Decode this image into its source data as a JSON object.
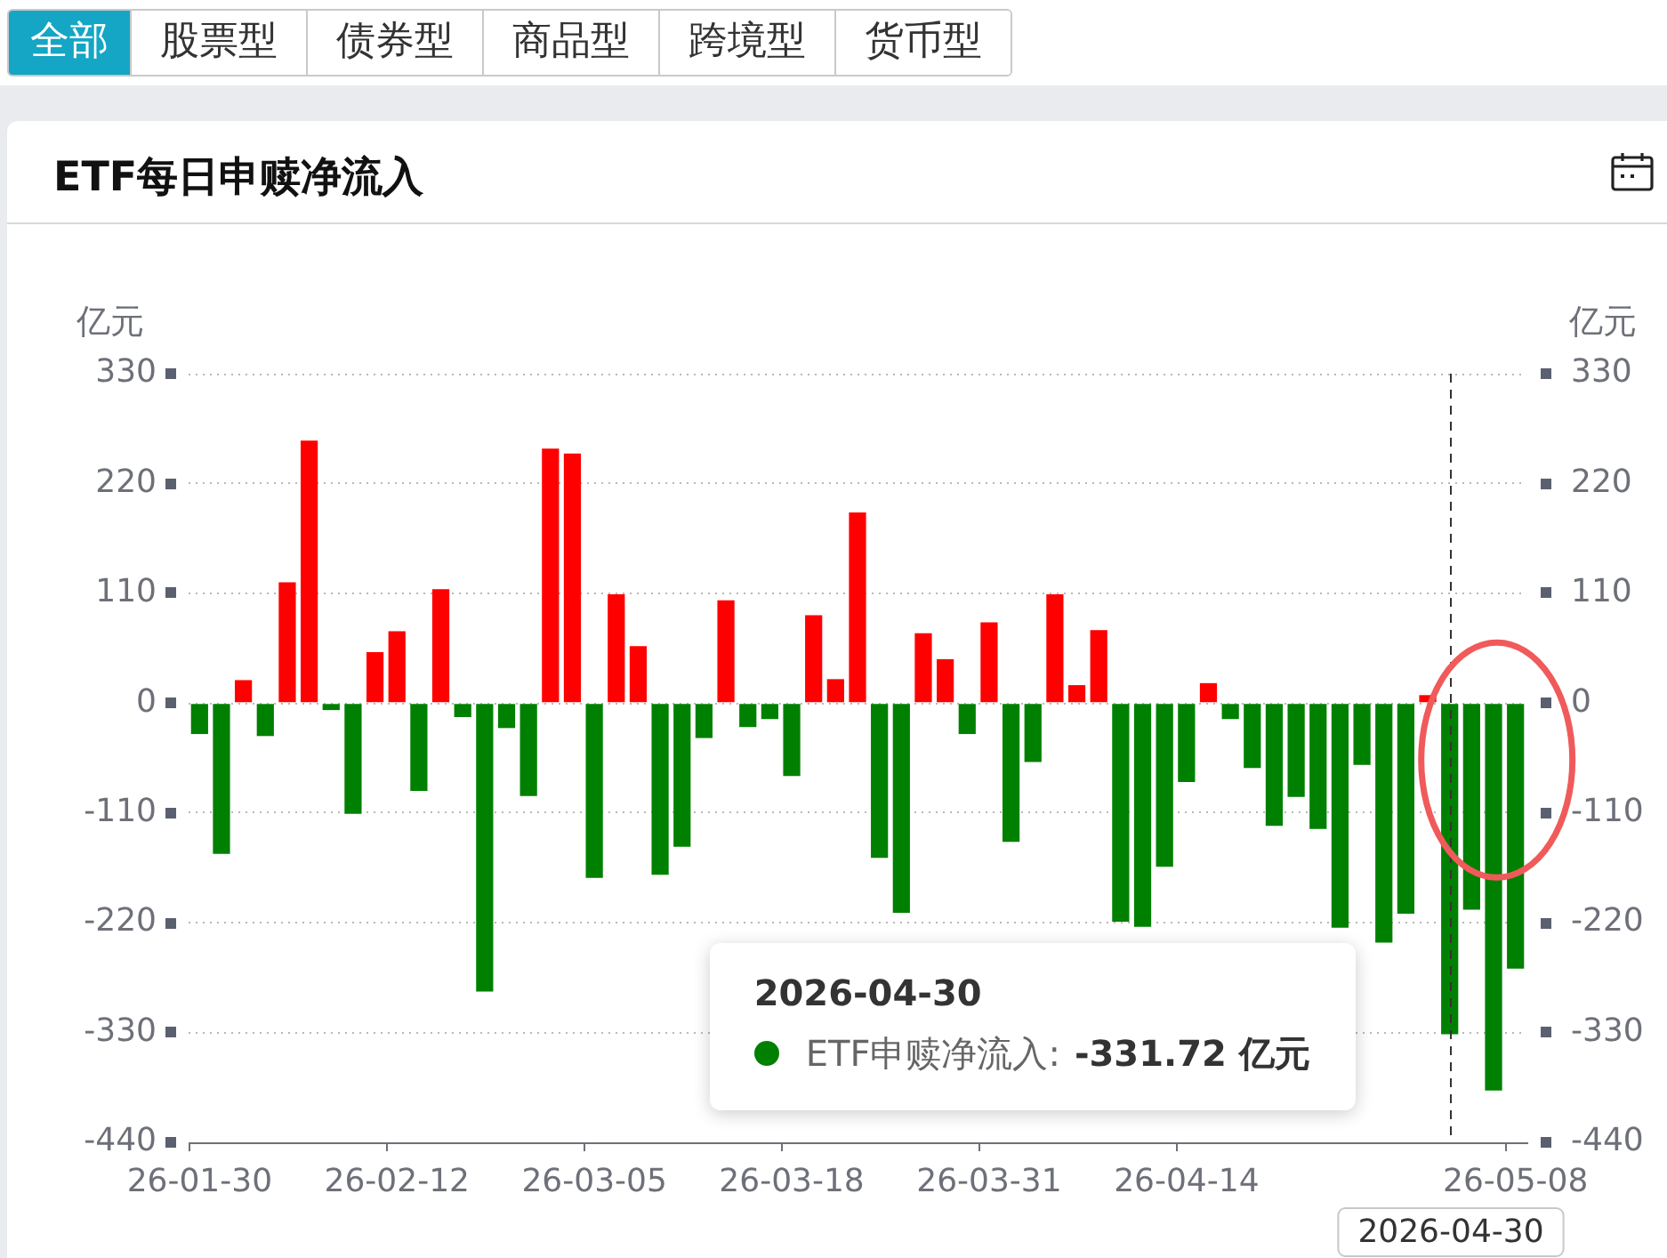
{
  "chart_data": {
    "type": "bar",
    "title": "ETF每日申赎净流入",
    "ylabel": "亿元",
    "y2label": "亿元",
    "categories": [
      "26-01-30",
      null,
      null,
      null,
      null,
      null,
      null,
      null,
      null,
      "26-02-12",
      null,
      null,
      null,
      null,
      null,
      null,
      null,
      null,
      "26-03-05",
      null,
      null,
      null,
      null,
      null,
      null,
      null,
      null,
      "26-03-18",
      null,
      null,
      null,
      null,
      null,
      null,
      null,
      null,
      "26-03-31",
      null,
      null,
      null,
      null,
      null,
      null,
      null,
      null,
      "26-04-14",
      null,
      null,
      null,
      null,
      null,
      null,
      null,
      null,
      null,
      null,
      null,
      "2026-04-30",
      null,
      null,
      "26-05-08"
    ],
    "values": [
      -31,
      -151,
      23,
      -33,
      121,
      263,
      -7,
      -111,
      51,
      72,
      -88,
      114,
      -14,
      -289,
      -25,
      -93,
      255,
      250,
      -175,
      109,
      57,
      -172,
      -144,
      -35,
      103,
      -24,
      -16,
      -73,
      88,
      24,
      191,
      -155,
      -210,
      70,
      44,
      -31,
      81,
      -139,
      -59,
      109,
      18,
      73,
      -219,
      -224,
      -164,
      -79,
      20,
      -16,
      -65,
      -123,
      -94,
      -126,
      -225,
      -62,
      -240,
      -211,
      8,
      -331.72,
      -207,
      -388,
      -266
    ],
    "colors": [
      "#008000",
      "#008000",
      "#ff0000",
      "#008000",
      "#ff0000",
      "#ff0000",
      "#008000",
      "#008000",
      "#ff0000",
      "#ff0000",
      "#008000",
      "#ff0000",
      "#008000",
      "#008000",
      "#008000",
      "#008000",
      "#ff0000",
      "#ff0000",
      "#008000",
      "#ff0000",
      "#ff0000",
      "#008000",
      "#008000",
      "#008000",
      "#ff0000",
      "#008000",
      "#008000",
      "#008000",
      "#ff0000",
      "#ff0000",
      "#ff0000",
      "#008000",
      "#008000",
      "#ff0000",
      "#ff0000",
      "#008000",
      "#ff0000",
      "#008000",
      "#008000",
      "#ff0000",
      "#ff0000",
      "#ff0000",
      "#008000",
      "#008000",
      "#008000",
      "#008000",
      "#ff0000",
      "#008000",
      "#008000",
      "#008000",
      "#008000",
      "#008000",
      "#008000",
      "#008000",
      "#008000",
      "#008000",
      "#ff0000",
      "#008000",
      "#008000",
      "#008000",
      "#008000"
    ],
    "ylim": [
      -440,
      330
    ],
    "yticks": [
      -440,
      -330,
      -220,
      -110,
      0,
      110,
      220,
      330
    ],
    "y2lim": [
      -440,
      330
    ],
    "y2ticks": [
      -440,
      -330,
      -220,
      -110,
      0,
      110,
      220,
      330
    ],
    "grid": "y",
    "legend": false,
    "ref_lines": [
      {
        "axis": "x",
        "value": "2026-04-30",
        "line_style": "dashed",
        "color": "#333333"
      }
    ],
    "annotations": [
      "全部",
      "股票型",
      "债券型",
      "商品型",
      "跨境型",
      "货币型",
      "2026-04-30\nETF申赎净流入: -331.72 亿元"
    ]
  }
}
